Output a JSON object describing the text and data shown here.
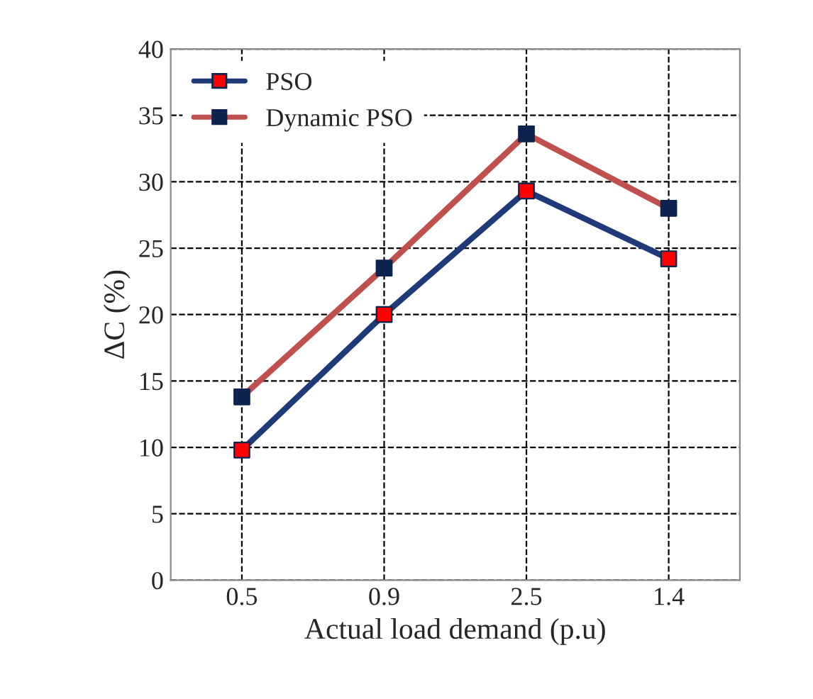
{
  "chart_data": {
    "type": "line",
    "xlabel": "Actual load demand (p.u)",
    "ylabel": "ΔC (%)",
    "categories": [
      "0.5",
      "0.9",
      "2.5",
      "1.4"
    ],
    "series": [
      {
        "name": "PSO",
        "color": "#1f3a78",
        "colors": [
          "#ff0000",
          "#ff0000",
          "#ff0000",
          "#ff0000"
        ],
        "values": [
          9.8,
          20,
          29.3,
          24.2
        ]
      },
      {
        "name": "Dynamic PSO",
        "color": "#c0504d",
        "colors": [
          "#0f2350",
          "#0f2350",
          "#0f2350",
          "#0f2350"
        ],
        "values": [
          13.8,
          23.5,
          33.6,
          28
        ]
      }
    ],
    "ylim": [
      0,
      40
    ],
    "yticks": [
      0,
      5,
      10,
      15,
      20,
      25,
      30,
      35,
      40
    ],
    "grid": true,
    "legend": "top left",
    "marker": "square",
    "line_style": "solid"
  }
}
